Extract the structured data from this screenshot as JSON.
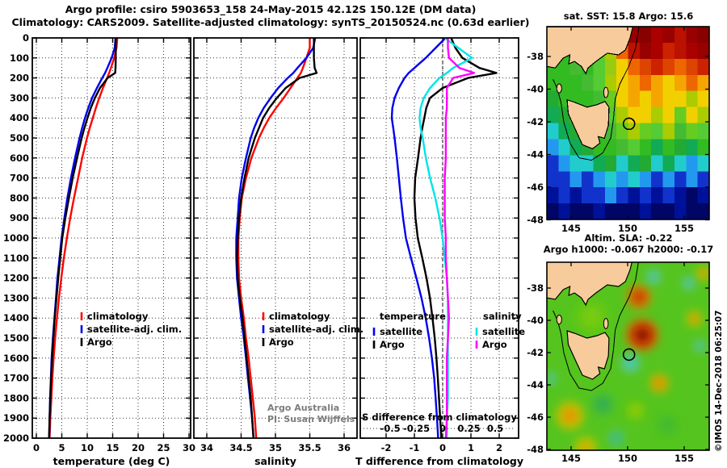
{
  "title": {
    "line1": "Argo profile: csiro 5903653_158 24-May-2015 42.12S 150.12E (DM data)",
    "line2": "Climatology: CARS2009. Satellite-adjusted climatology: synTS_20150524.nc (0.63d earlier)"
  },
  "annotations": {
    "argo_australia": "Argo Australia",
    "pi": "PI: Susan Wijffels",
    "copyright": "©IMOS 14-Dec-2018 06:25:07"
  },
  "colors": {
    "climatology": "#FF0000",
    "satellite_adjusted": "#0000EE",
    "argo": "#000000",
    "sat_salinity": "#00E5E5",
    "argo_salinity": "#FF00FF",
    "land": "#F8CB9C",
    "sla_background": "#55C41E"
  },
  "chart_data": [
    {
      "type": "line",
      "id": "temperature-profile",
      "xlabel": "temperature (deg C)",
      "xticks": [
        0,
        5,
        10,
        15,
        20,
        25,
        30
      ],
      "ylabel_ticks": [
        0,
        100,
        200,
        300,
        400,
        500,
        600,
        700,
        800,
        900,
        1000,
        1100,
        1200,
        1300,
        1400,
        1500,
        1600,
        1700,
        1800,
        1900,
        2000
      ],
      "ylim": [
        0,
        2000
      ],
      "legend": [
        {
          "label": "climatology",
          "color": "#FF0000"
        },
        {
          "label": "satellite-adj. clim.",
          "color": "#0000EE"
        },
        {
          "label": "Argo",
          "color": "#000000"
        }
      ],
      "depths": [
        0,
        50,
        100,
        150,
        175,
        200,
        250,
        300,
        350,
        400,
        450,
        500,
        600,
        700,
        800,
        900,
        1000,
        1100,
        1200,
        1300,
        1400,
        1500,
        1600,
        1700,
        1800,
        1900,
        2000
      ],
      "series": [
        {
          "name": "climatology",
          "color": "#FF0000",
          "values": [
            15.9,
            15.75,
            15.3,
            14.65,
            14.3,
            13.9,
            13.1,
            12.35,
            11.7,
            11.1,
            10.5,
            9.95,
            9.0,
            8.2,
            7.4,
            6.65,
            6.0,
            5.4,
            4.9,
            4.45,
            4.05,
            3.7,
            3.4,
            3.15,
            2.95,
            2.75,
            2.6
          ]
        },
        {
          "name": "satellite-adj. clim.",
          "color": "#0000EE",
          "values": [
            15.55,
            15.4,
            14.8,
            13.95,
            13.5,
            12.95,
            11.9,
            10.95,
            10.2,
            9.55,
            9.0,
            8.5,
            7.6,
            6.8,
            6.1,
            5.5,
            4.95,
            4.55,
            4.15,
            3.85,
            3.55,
            3.25,
            3.0,
            2.85,
            2.7,
            2.6,
            2.5
          ]
        },
        {
          "name": "Argo",
          "color": "#000000",
          "values": [
            15.6,
            15.6,
            15.6,
            15.55,
            15.5,
            14.0,
            12.5,
            11.5,
            10.7,
            10.05,
            9.45,
            8.9,
            8.0,
            7.15,
            6.4,
            5.7,
            5.1,
            4.7,
            4.3,
            3.95,
            3.6,
            3.35,
            3.1,
            2.9,
            2.75,
            2.6,
            2.5
          ]
        }
      ]
    },
    {
      "type": "line",
      "id": "salinity-profile",
      "xlabel": "salinity",
      "xticks": [
        34,
        34.5,
        35,
        35.5,
        36
      ],
      "ylim": [
        0,
        2000
      ],
      "legend": [
        {
          "label": "climatology",
          "color": "#FF0000"
        },
        {
          "label": "satellite-adj. clim.",
          "color": "#0000EE"
        },
        {
          "label": "Argo",
          "color": "#000000"
        }
      ],
      "depths": [
        0,
        50,
        100,
        150,
        175,
        200,
        250,
        300,
        350,
        400,
        450,
        500,
        600,
        700,
        800,
        900,
        1000,
        1100,
        1200,
        1300,
        1400,
        1500,
        1600,
        1700,
        1800,
        1900,
        2000
      ],
      "series": [
        {
          "name": "climatology",
          "color": "#FF0000",
          "values": [
            35.5,
            35.5,
            35.45,
            35.4,
            35.37,
            35.32,
            35.22,
            35.12,
            35.01,
            34.91,
            34.83,
            34.76,
            34.65,
            34.57,
            34.51,
            34.48,
            34.46,
            34.46,
            34.47,
            34.5,
            34.54,
            34.57,
            34.61,
            34.64,
            34.67,
            34.7,
            34.72
          ]
        },
        {
          "name": "satellite-adj. clim.",
          "color": "#0000EE",
          "values": [
            35.58,
            35.55,
            35.45,
            35.32,
            35.26,
            35.18,
            35.04,
            34.93,
            34.83,
            34.75,
            34.69,
            34.64,
            34.57,
            34.51,
            34.47,
            34.45,
            34.43,
            34.43,
            34.44,
            34.47,
            34.5,
            34.54,
            34.57,
            34.6,
            34.63,
            34.66,
            34.68
          ]
        },
        {
          "name": "Argo",
          "color": "#000000",
          "values": [
            35.56,
            35.56,
            35.56,
            35.57,
            35.6,
            35.35,
            35.15,
            35.02,
            34.91,
            34.82,
            34.76,
            34.7,
            34.61,
            34.55,
            34.5,
            34.47,
            34.45,
            34.44,
            34.45,
            34.48,
            34.52,
            34.55,
            34.58,
            34.61,
            34.64,
            34.66,
            34.68
          ]
        }
      ]
    },
    {
      "type": "line",
      "id": "difference-profile",
      "xlabel": "T difference from climatology",
      "xticks": [
        -2,
        -1,
        0,
        1,
        2
      ],
      "s_axis_label": "S difference from climatology",
      "s_ticks": [
        -0.5,
        -0.25,
        0,
        0.25,
        0.5
      ],
      "ylim": [
        0,
        2000
      ],
      "legend_temperature": {
        "header": "temperature",
        "rows": [
          {
            "label": "satellite",
            "color": "#0000EE"
          },
          {
            "label": "Argo",
            "color": "#000000"
          }
        ]
      },
      "legend_salinity": {
        "header": "salinity",
        "rows": [
          {
            "label": "satellite",
            "color": "#00E5E5"
          },
          {
            "label": "Argo",
            "color": "#FF00FF"
          }
        ]
      },
      "depths": [
        0,
        50,
        100,
        150,
        175,
        200,
        250,
        300,
        350,
        400,
        450,
        500,
        600,
        700,
        800,
        900,
        1000,
        1100,
        1200,
        1300,
        1400,
        1500,
        1600,
        1700,
        1800,
        1900,
        2000
      ],
      "series": [
        {
          "name": "T satellite",
          "axis": "T",
          "color": "#0000EE",
          "values": [
            0.1,
            -0.25,
            -0.6,
            -1.0,
            -1.2,
            -1.35,
            -1.55,
            -1.7,
            -1.78,
            -1.8,
            -1.75,
            -1.7,
            -1.62,
            -1.55,
            -1.48,
            -1.4,
            -1.3,
            -1.12,
            -0.93,
            -0.75,
            -0.6,
            -0.48,
            -0.38,
            -0.3,
            -0.25,
            -0.2,
            -0.16
          ]
        },
        {
          "name": "T Argo",
          "axis": "T",
          "color": "#000000",
          "values": [
            0.3,
            0.45,
            0.7,
            1.3,
            1.9,
            0.9,
            0.0,
            -0.45,
            -0.58,
            -0.65,
            -0.72,
            -0.78,
            -0.87,
            -0.97,
            -1.0,
            -0.96,
            -0.88,
            -0.72,
            -0.57,
            -0.45,
            -0.36,
            -0.28,
            -0.22,
            -0.17,
            -0.13,
            -0.09,
            -0.05
          ]
        },
        {
          "name": "S satellite",
          "axis": "S",
          "color": "#00E5E5",
          "values": [
            0.02,
            0.15,
            0.28,
            0.1,
            0.04,
            -0.03,
            -0.12,
            -0.18,
            -0.21,
            -0.22,
            -0.21,
            -0.19,
            -0.16,
            -0.12,
            -0.07,
            -0.03,
            0.0,
            0.02,
            0.04,
            0.05,
            0.05,
            0.05,
            0.05,
            0.05,
            0.05,
            0.04,
            0.04
          ]
        },
        {
          "name": "S Argo",
          "axis": "S",
          "color": "#FF00FF",
          "values": [
            0.05,
            0.05,
            0.06,
            0.16,
            0.3,
            0.1,
            0.04,
            0.04,
            0.04,
            0.03,
            0.03,
            0.03,
            0.03,
            0.02,
            0.02,
            0.02,
            0.03,
            0.03,
            0.04,
            0.05,
            0.06,
            0.05,
            0.04,
            0.04,
            0.04,
            0.04,
            0.03
          ]
        }
      ]
    },
    {
      "type": "heatmap",
      "id": "sst-map",
      "title": "sat. SST: 15.8 Argo: 15.6",
      "xticks": [
        145,
        150,
        155
      ],
      "yticks": [
        -38,
        -40,
        -42,
        -44,
        -46,
        -48
      ],
      "float_position": {
        "lon": 150.12,
        "lat": -42.12
      },
      "grid_rows": [
        [
          "#33BB22",
          "#33BB22",
          "#33BB22",
          "#44BB33",
          "#55CC33",
          "#AACC00",
          "#DD4400",
          "#990000",
          "#880000",
          "#AA0000",
          "#990000",
          "#BB1100",
          "#990000",
          "#880000"
        ],
        [
          "#33BB22",
          "#33BB22",
          "#33BB22",
          "#44BB33",
          "#66CC22",
          "#AACC00",
          "#EE6600",
          "#BB1100",
          "#990000",
          "#AA0000",
          "#CC2200",
          "#BB1100",
          "#AA0000",
          "#990000"
        ],
        [
          "#33BB22",
          "#33BB22",
          "#44BB33",
          "#33BB22",
          "#55CC33",
          "#99CC11",
          "#F2D000",
          "#EE6600",
          "#DD4400",
          "#CC2200",
          "#DD4400",
          "#EE6600",
          "#DD4400",
          "#CC2200"
        ],
        [
          "#33BB22",
          "#33BB22",
          "#33BB22",
          "#44BB33",
          "#55CC33",
          "#AACC00",
          "#F2D000",
          "#F5A500",
          "#EE6600",
          "#F5A500",
          "#F2D000",
          "#F5A500",
          "#EE6600",
          "#F5A500"
        ],
        [
          "#22AA33",
          "#33BB22",
          "#33BB22",
          "#33BB22",
          "#44BB33",
          "#66CC22",
          "#F2D000",
          "#F5A500",
          "#F2D000",
          "#F5A500",
          "#F2D000",
          "#F2D000",
          "#AACC00",
          "#F2D000"
        ],
        [
          "#11AA55",
          "#22AA33",
          "#33BB22",
          "#33BB22",
          "#44BB33",
          "#55CC33",
          "#AACC00",
          "#F2D000",
          "#F2D000",
          "#AACC00",
          "#F2D000",
          "#66CC22",
          "#F2D000",
          "#AACC00"
        ],
        [
          "#22CCCC",
          "#11AA55",
          "#22AA33",
          "#33BB22",
          "#33BB22",
          "#44BB33",
          "#66CC22",
          "#AACC00",
          "#66CC22",
          "#55CC33",
          "#AACC00",
          "#44BB33",
          "#66CC22",
          "#55CC33"
        ],
        [
          "#2299EE",
          "#22CCCC",
          "#11AA55",
          "#22AA33",
          "#33BB22",
          "#33BB22",
          "#44BB33",
          "#55CC33",
          "#33BB22",
          "#11AA55",
          "#33BB22",
          "#22AA33",
          "#11AA55",
          "#33BB22"
        ],
        [
          "#1133CC",
          "#2299EE",
          "#22CCCC",
          "#22CCCC",
          "#11AA55",
          "#22AA33",
          "#22CCCC",
          "#11AA55",
          "#22AA33",
          "#22CCCC",
          "#11AA55",
          "#22CCCC",
          "#2299EE",
          "#22CCCC"
        ],
        [
          "#1133CC",
          "#1133CC",
          "#2299EE",
          "#1133CC",
          "#2299EE",
          "#22CCCC",
          "#2299EE",
          "#22CCCC",
          "#2299EE",
          "#1133CC",
          "#2299EE",
          "#1133CC",
          "#2299EE",
          "#1133CC"
        ],
        [
          "#001199",
          "#1133CC",
          "#001199",
          "#1133CC",
          "#1133CC",
          "#2299EE",
          "#1133CC",
          "#001199",
          "#1133CC",
          "#001199",
          "#1133CC",
          "#001199",
          "#000566",
          "#001199"
        ],
        [
          "#000566",
          "#001199",
          "#000566",
          "#000566",
          "#001199",
          "#000566",
          "#000566",
          "#000566",
          "#001199",
          "#000566",
          "#000566",
          "#001199",
          "#000566",
          "#000566"
        ]
      ]
    },
    {
      "type": "heatmap",
      "id": "sla-map",
      "title_line1": "Altim. SLA: -0.22",
      "title_line2": "Argo h1000: -0.067 h2000: -0.17",
      "xticks": [
        145,
        150,
        155
      ],
      "yticks": [
        -38,
        -40,
        -42,
        -44,
        -46,
        -48
      ],
      "float_position": {
        "lon": 150.12,
        "lat": -42.12
      },
      "background": "#55C41E",
      "blobs": [
        {
          "lon": 146.8,
          "lat": -39.8,
          "r": 1.3,
          "inner": "#7ACC10",
          "outer": "#62C818"
        },
        {
          "lon": 147.8,
          "lat": -45.2,
          "r": 0.9,
          "inner": "#2FA85A",
          "outer": "#49C030"
        },
        {
          "lon": 153.5,
          "lat": -46.5,
          "r": 0.9,
          "inner": "#3FB830",
          "outer": "#4CC224"
        },
        {
          "lon": 150.7,
          "lat": -45.6,
          "r": 0.7,
          "inner": "#9FCC00",
          "outer": "#6FC810"
        },
        {
          "lon": 151.3,
          "lat": -40.9,
          "r": 1.15,
          "inner": "#8F1000",
          "outer": "#E06000"
        },
        {
          "lon": 151.0,
          "lat": -38.55,
          "r": 0.85,
          "inner": "#C03000",
          "outer": "#E08000"
        },
        {
          "lon": 152.8,
          "lat": -43.9,
          "r": 0.65,
          "inner": "#E08000",
          "outer": "#CCB800"
        },
        {
          "lon": 144.9,
          "lat": -45.9,
          "r": 1.0,
          "inner": "#E89000",
          "outer": "#BFC400"
        },
        {
          "lon": 146.3,
          "lat": -47.9,
          "r": 0.8,
          "inner": "#D8A800",
          "outer": "#AFC800"
        },
        {
          "lon": 155.9,
          "lat": -39.9,
          "r": 0.55,
          "inner": "#DD8800",
          "outer": "#BFC400"
        },
        {
          "lon": 156.7,
          "lat": -37.1,
          "r": 0.5,
          "inner": "#DD8800",
          "outer": "#BFC400"
        },
        {
          "lon": 150.25,
          "lat": -42.65,
          "r": 0.7,
          "inner": "#38C8C8",
          "outer": "#5FC880"
        },
        {
          "lon": 152.3,
          "lat": -37.3,
          "r": 0.55,
          "inner": "#45C0C0",
          "outer": "#5FC880"
        },
        {
          "lon": 155.4,
          "lat": -37.7,
          "r": 0.5,
          "inner": "#45C0C0",
          "outer": "#5FC880"
        },
        {
          "lon": 156.4,
          "lat": -41.6,
          "r": 0.45,
          "inner": "#3FB8B8",
          "outer": "#5FC880"
        },
        {
          "lon": 149.0,
          "lat": -47.3,
          "r": 0.6,
          "inner": "#2FB890",
          "outer": "#55C46A"
        },
        {
          "lon": 143.2,
          "lat": -43.6,
          "r": 0.5,
          "inner": "#4FC49A",
          "outer": "#55C46A"
        }
      ]
    }
  ],
  "geo": {
    "mainland": [
      [
        142.8,
        -36.2
      ],
      [
        150.45,
        -36.2
      ],
      [
        150.2,
        -36.9
      ],
      [
        149.8,
        -37.6
      ],
      [
        149.2,
        -37.9
      ],
      [
        148.2,
        -37.8
      ],
      [
        147.2,
        -38.3
      ],
      [
        146.5,
        -38.7
      ],
      [
        146.3,
        -39.05
      ],
      [
        145.9,
        -38.6
      ],
      [
        145.3,
        -38.3
      ],
      [
        144.8,
        -38.45
      ],
      [
        144.9,
        -37.9
      ],
      [
        144.3,
        -38.1
      ],
      [
        143.6,
        -38.7
      ],
      [
        142.8,
        -38.6
      ]
    ],
    "tasmania": [
      [
        144.65,
        -40.65
      ],
      [
        145.3,
        -40.8
      ],
      [
        146.4,
        -41.1
      ],
      [
        147.3,
        -40.95
      ],
      [
        148.0,
        -40.75
      ],
      [
        148.35,
        -41.1
      ],
      [
        148.3,
        -42.2
      ],
      [
        147.95,
        -43.0
      ],
      [
        147.4,
        -42.9
      ],
      [
        147.55,
        -43.3
      ],
      [
        146.9,
        -43.65
      ],
      [
        146.0,
        -43.4
      ],
      [
        145.4,
        -42.5
      ],
      [
        144.75,
        -41.5
      ]
    ],
    "king_island": {
      "lon": 143.95,
      "lat": -39.95,
      "rx": 0.22,
      "ry": 0.28
    },
    "flinders_island": {
      "lon": 148.08,
      "lat": -40.2,
      "rx": 0.2,
      "ry": 0.32
    },
    "shelf_contour": [
      [
        151.0,
        -36.2
      ],
      [
        150.7,
        -37.5
      ],
      [
        150.1,
        -38.6
      ],
      [
        149.3,
        -39.7
      ],
      [
        148.9,
        -40.6
      ],
      [
        148.75,
        -41.8
      ],
      [
        148.5,
        -43.0
      ],
      [
        147.8,
        -43.9
      ],
      [
        146.8,
        -44.35
      ],
      [
        145.7,
        -44.2
      ],
      [
        144.9,
        -43.3
      ],
      [
        144.35,
        -42.0
      ],
      [
        144.1,
        -40.8
      ],
      [
        143.8,
        -40.0
      ],
      [
        143.4,
        -39.4
      ]
    ]
  }
}
